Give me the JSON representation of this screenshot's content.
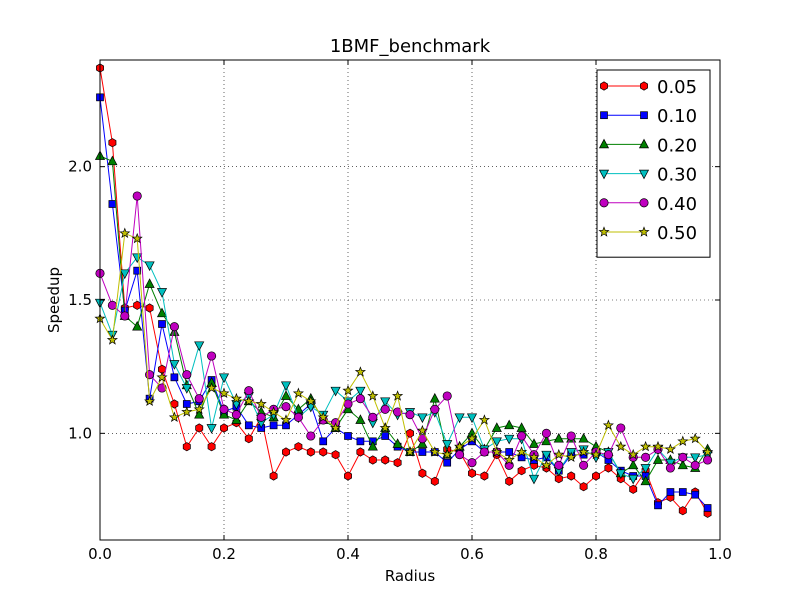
{
  "chart_data": {
    "type": "line",
    "title": "1BMF_benchmark",
    "xlabel": "Radius",
    "ylabel": "Speedup",
    "xlim": [
      0.0,
      1.0
    ],
    "ylim": [
      0.6,
      2.4
    ],
    "xticks": [
      "0.0",
      "0.2",
      "0.4",
      "0.6",
      "0.8",
      "1.0"
    ],
    "yticks": [
      "1.0",
      "1.5",
      "2.0"
    ],
    "grid": true,
    "legend_position": "top-right",
    "x": [
      0.0,
      0.02,
      0.04,
      0.06,
      0.08,
      0.1,
      0.12,
      0.14,
      0.16,
      0.18,
      0.2,
      0.22,
      0.24,
      0.26,
      0.28,
      0.3,
      0.32,
      0.34,
      0.36,
      0.38,
      0.4,
      0.42,
      0.44,
      0.46,
      0.48,
      0.5,
      0.52,
      0.54,
      0.56,
      0.58,
      0.6,
      0.62,
      0.64,
      0.66,
      0.68,
      0.7,
      0.72,
      0.74,
      0.76,
      0.78,
      0.8,
      0.82,
      0.84,
      0.86,
      0.88,
      0.9,
      0.92,
      0.94,
      0.96,
      0.98
    ],
    "series": [
      {
        "name": "0.05",
        "color": "#ff0000",
        "marker": "hexagon",
        "values": [
          2.37,
          2.09,
          1.47,
          1.48,
          1.47,
          1.24,
          1.11,
          0.95,
          1.02,
          0.95,
          1.02,
          1.04,
          0.98,
          1.06,
          0.84,
          0.93,
          0.95,
          0.93,
          0.93,
          0.92,
          0.84,
          0.93,
          0.9,
          0.9,
          0.89,
          1.0,
          0.85,
          0.82,
          0.94,
          0.93,
          0.85,
          0.84,
          0.92,
          0.82,
          0.86,
          0.88,
          0.87,
          0.83,
          0.84,
          0.8,
          0.84,
          0.87,
          0.83,
          0.79,
          0.86,
          0.74,
          0.76,
          0.71,
          0.78,
          0.7
        ]
      },
      {
        "name": "0.10",
        "color": "#0000ff",
        "marker": "square",
        "values": [
          2.26,
          1.86,
          1.46,
          1.61,
          1.13,
          1.41,
          1.21,
          1.11,
          1.12,
          1.2,
          1.08,
          1.1,
          1.03,
          1.02,
          1.03,
          1.03,
          1.07,
          1.11,
          0.97,
          1.02,
          0.99,
          0.97,
          0.97,
          0.99,
          0.95,
          0.93,
          0.93,
          0.93,
          0.89,
          0.94,
          0.97,
          0.93,
          0.93,
          0.93,
          0.91,
          0.9,
          0.91,
          0.86,
          0.92,
          0.92,
          0.93,
          0.9,
          0.86,
          0.84,
          0.84,
          0.73,
          0.78,
          0.78,
          0.77,
          0.72
        ]
      },
      {
        "name": "0.20",
        "color": "#008000",
        "marker": "triangle-up",
        "values": [
          2.04,
          2.02,
          1.44,
          1.4,
          1.56,
          1.45,
          1.38,
          1.18,
          1.07,
          1.19,
          1.07,
          1.05,
          1.12,
          1.08,
          1.06,
          1.14,
          1.09,
          1.13,
          1.05,
          1.02,
          1.09,
          1.05,
          0.95,
          1.02,
          0.96,
          0.93,
          0.96,
          1.13,
          0.92,
          0.95,
          1.0,
          0.94,
          1.02,
          1.03,
          1.02,
          0.96,
          0.97,
          0.98,
          0.98,
          0.98,
          0.95,
          0.93,
          0.85,
          0.88,
          0.82,
          0.9,
          0.9,
          0.88,
          0.87,
          0.94
        ]
      },
      {
        "name": "0.30",
        "color": "#00bfbf",
        "marker": "triangle-down",
        "values": [
          1.49,
          1.37,
          1.6,
          1.66,
          1.63,
          1.53,
          1.26,
          1.17,
          1.33,
          1.02,
          1.21,
          1.11,
          1.14,
          1.04,
          1.07,
          1.18,
          1.06,
          1.1,
          1.07,
          1.16,
          1.12,
          1.16,
          1.04,
          1.12,
          1.07,
          1.08,
          1.06,
          1.08,
          0.96,
          1.06,
          1.06,
          0.94,
          0.97,
          0.98,
          0.98,
          0.83,
          0.92,
          0.86,
          0.93,
          0.94,
          0.91,
          0.93,
          0.85,
          0.83,
          0.87,
          0.94,
          0.89,
          0.91,
          0.91,
          0.92
        ]
      },
      {
        "name": "0.40",
        "color": "#bf00bf",
        "marker": "circle",
        "values": [
          1.6,
          1.48,
          1.44,
          1.89,
          1.22,
          1.17,
          1.4,
          1.22,
          1.13,
          1.29,
          1.09,
          1.07,
          1.16,
          1.06,
          1.09,
          1.1,
          1.06,
          0.99,
          1.05,
          1.04,
          1.11,
          1.13,
          1.06,
          1.09,
          1.08,
          1.07,
          0.98,
          1.09,
          1.14,
          0.92,
          0.89,
          0.93,
          0.93,
          0.88,
          0.99,
          0.92,
          1.0,
          0.88,
          0.99,
          0.88,
          0.93,
          0.92,
          1.02,
          0.91,
          0.91,
          0.94,
          0.87,
          0.91,
          0.88,
          0.9
        ]
      },
      {
        "name": "0.50",
        "color": "#bfbf00",
        "marker": "star",
        "values": [
          1.43,
          1.35,
          1.75,
          1.73,
          1.12,
          1.21,
          1.06,
          1.08,
          1.09,
          1.17,
          1.15,
          1.13,
          1.12,
          1.11,
          1.08,
          1.05,
          1.15,
          1.12,
          1.06,
          1.02,
          1.16,
          1.23,
          1.14,
          1.02,
          1.14,
          0.93,
          1.01,
          0.93,
          0.92,
          0.95,
          0.98,
          1.05,
          0.93,
          0.9,
          0.93,
          0.91,
          0.88,
          0.92,
          0.91,
          0.93,
          0.92,
          1.03,
          0.95,
          0.92,
          0.95,
          0.95,
          0.94,
          0.97,
          0.98,
          0.93
        ]
      }
    ]
  }
}
